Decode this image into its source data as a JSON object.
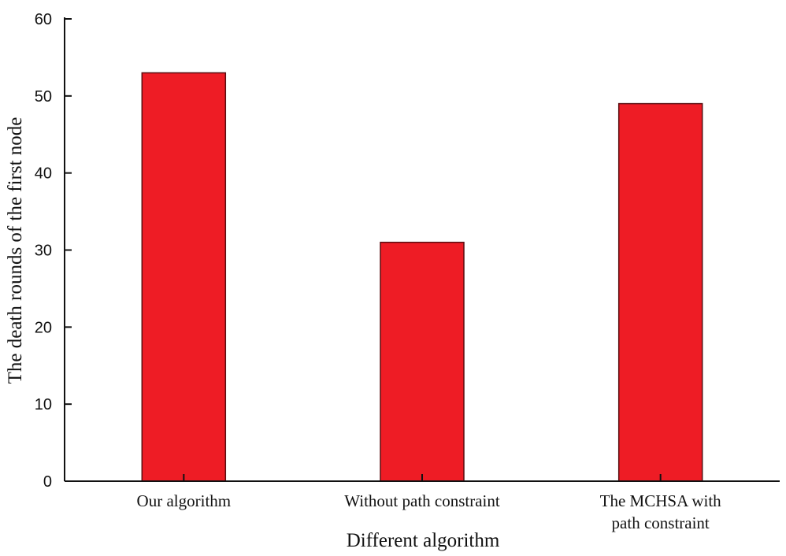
{
  "chart_data": {
    "type": "bar",
    "categories": [
      [
        "Our algorithm"
      ],
      [
        "Without path constraint"
      ],
      [
        "The MCHSA with",
        "path constraint"
      ]
    ],
    "values": [
      53,
      31,
      49
    ],
    "xlabel": "Different algorithm",
    "ylabel": "The death rounds of the first node",
    "ylim": [
      0,
      60
    ],
    "yticks": [
      0,
      10,
      20,
      30,
      40,
      50,
      60
    ],
    "grid": false,
    "legend": "none",
    "bar_color": "#ee1c25",
    "bar_edge_color": "#5a0d10"
  }
}
